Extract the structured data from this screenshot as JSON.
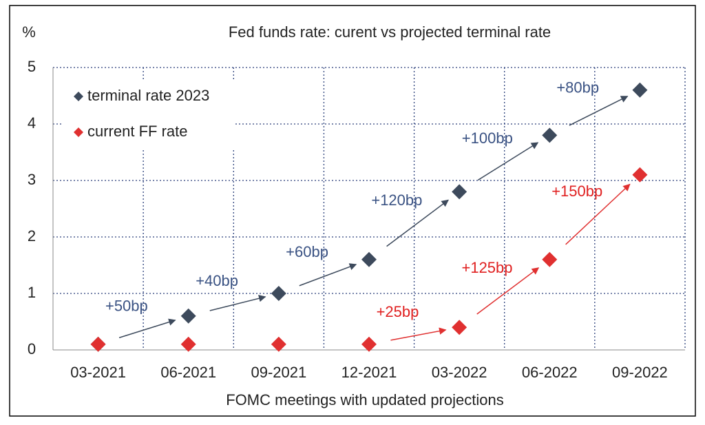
{
  "chart_data": {
    "type": "scatter",
    "title": "Fed funds rate: curent vs projected terminal rate",
    "y_label": "%",
    "x_label": "FOMC meetings with updated projections",
    "categories": [
      "03-2021",
      "06-2021",
      "09-2021",
      "12-2021",
      "03-2022",
      "06-2022",
      "09-2022"
    ],
    "series": [
      {
        "name": "terminal rate 2023",
        "color": "#3d4a5c",
        "label_color": "#3a5283",
        "values": [
          0.1,
          0.6,
          1.0,
          1.6,
          2.8,
          3.8,
          4.6
        ],
        "change_labels": [
          "+50bp",
          "+40bp",
          "+60bp",
          "+120bp",
          "+100bp",
          "+80bp"
        ]
      },
      {
        "name": "current FF rate",
        "color": "#e03030",
        "label_color": "#e02020",
        "values": [
          0.1,
          0.1,
          0.1,
          0.1,
          0.4,
          1.6,
          3.1
        ],
        "change_labels": [
          null,
          null,
          null,
          "+25bp",
          "+125bp",
          "+150bp"
        ]
      }
    ],
    "ylim": [
      0,
      5
    ],
    "yticks": [
      0,
      1,
      2,
      3,
      4,
      5
    ],
    "grid": true,
    "legend": "upper left"
  }
}
